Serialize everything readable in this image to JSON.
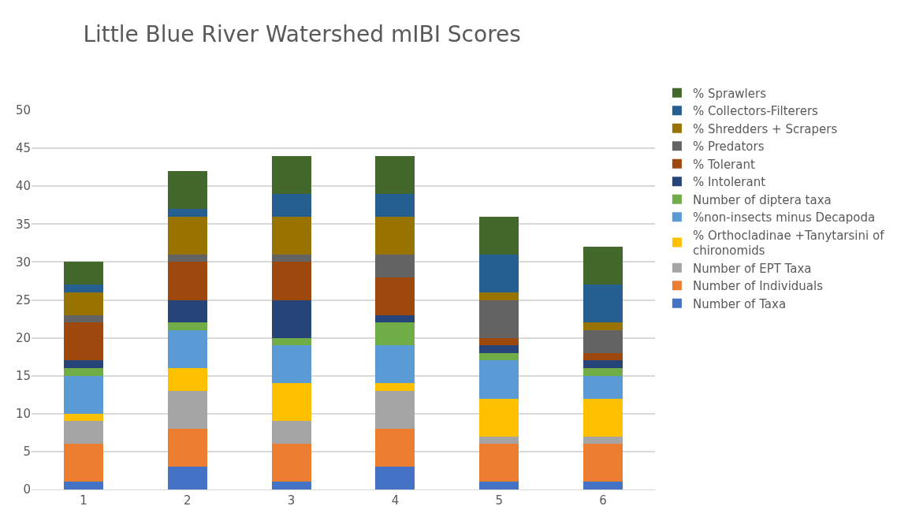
{
  "chart_data": {
    "type": "bar",
    "stacked": true,
    "title": "Little Blue River Watershed mIBI Scores",
    "categories": [
      "1",
      "2",
      "3",
      "4",
      "5",
      "6"
    ],
    "series": [
      {
        "name": "Number of Taxa",
        "color": "#4472c4",
        "values": [
          1,
          3,
          1,
          3,
          1,
          1
        ]
      },
      {
        "name": "Number of Individuals",
        "color": "#ed7d31",
        "values": [
          5,
          5,
          5,
          5,
          5,
          5
        ]
      },
      {
        "name": "Number of EPT Taxa",
        "color": "#a5a5a5",
        "values": [
          3,
          5,
          3,
          5,
          1,
          1
        ]
      },
      {
        "name": "% Orthocladinae +Tanytarsini of chironomids",
        "color": "#ffc000",
        "values": [
          1,
          3,
          5,
          1,
          5,
          5
        ]
      },
      {
        "name": "%non-insects minus Decapoda",
        "color": "#5b9bd5",
        "values": [
          5,
          5,
          5,
          5,
          5,
          3
        ]
      },
      {
        "name": "Number of diptera taxa",
        "color": "#70ad47",
        "values": [
          1,
          1,
          1,
          3,
          1,
          1
        ]
      },
      {
        "name": "% Intolerant",
        "color": "#264478",
        "values": [
          1,
          3,
          5,
          1,
          1,
          1
        ]
      },
      {
        "name": "% Tolerant",
        "color": "#9e480e",
        "values": [
          5,
          5,
          5,
          5,
          1,
          1
        ]
      },
      {
        "name": "% Predators",
        "color": "#636363",
        "values": [
          1,
          1,
          1,
          3,
          5,
          3
        ]
      },
      {
        "name": "% Shredders + Scrapers",
        "color": "#997300",
        "values": [
          3,
          5,
          5,
          5,
          1,
          1
        ]
      },
      {
        "name": "% Collectors-Filterers",
        "color": "#255e91",
        "values": [
          1,
          1,
          3,
          3,
          5,
          5
        ]
      },
      {
        "name": "% Sprawlers",
        "color": "#43682b",
        "values": [
          3,
          5,
          5,
          5,
          5,
          5
        ]
      }
    ],
    "ylim": [
      0,
      50
    ],
    "yticks": [
      0,
      5,
      10,
      15,
      20,
      25,
      30,
      35,
      40,
      45,
      50
    ],
    "grid": "y",
    "legend": "right"
  }
}
